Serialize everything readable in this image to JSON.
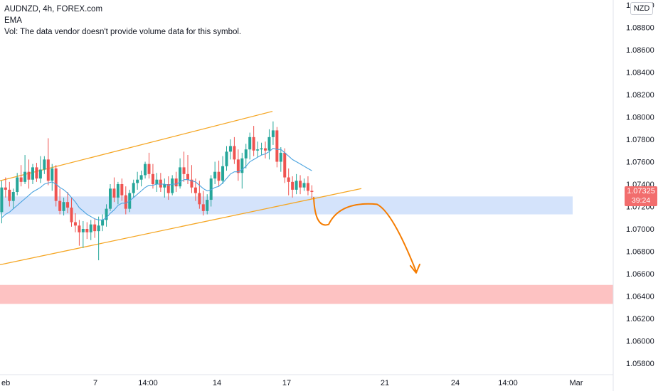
{
  "legend": {
    "symbol_line": "AUDNZD, 4h, FOREX.com",
    "ema_label": "EMA",
    "vol_label": "Vol: The data vendor doesn't provide volume data for this symbol."
  },
  "currency_button": "NZD",
  "last_price": {
    "value": "1.07325",
    "countdown": "39:24"
  },
  "colors": {
    "up": "#26a69a",
    "down": "#ef5350",
    "ema": "#4aa3df",
    "channel": "#f5a623",
    "support_zone": "#cfe0fb",
    "target_zone": "#fdbbbb",
    "projection": "#f57c00",
    "price_badge": "#f26d6d"
  },
  "chart_data": {
    "type": "candlestick",
    "timeframe": "4h",
    "y_axis": {
      "min": 1.057,
      "max": 1.09,
      "tick_labels": [
        "1.09000",
        "1.08800",
        "1.08600",
        "1.08400",
        "1.08200",
        "1.08000",
        "1.07800",
        "1.07600",
        "1.07400",
        "1.07200",
        "1.07000",
        "1.06800",
        "1.06600",
        "1.06400",
        "1.06200",
        "1.06000",
        "1.05800"
      ]
    },
    "x_axis": {
      "tick_labels": [
        "eb",
        "7",
        "14:00",
        "14",
        "17",
        "21",
        "24",
        "14:00",
        "Mar"
      ]
    },
    "candles": [
      {
        "o": 1.0715,
        "h": 1.0743,
        "l": 1.0705,
        "c": 1.0737
      },
      {
        "o": 1.0737,
        "h": 1.0746,
        "l": 1.0728,
        "c": 1.0735
      },
      {
        "o": 1.0735,
        "h": 1.0742,
        "l": 1.072,
        "c": 1.0725
      },
      {
        "o": 1.0725,
        "h": 1.0736,
        "l": 1.0718,
        "c": 1.0733
      },
      {
        "o": 1.0733,
        "h": 1.075,
        "l": 1.073,
        "c": 1.0746
      },
      {
        "o": 1.0746,
        "h": 1.0757,
        "l": 1.0738,
        "c": 1.0742
      },
      {
        "o": 1.0742,
        "h": 1.0766,
        "l": 1.074,
        "c": 1.0751
      },
      {
        "o": 1.0751,
        "h": 1.0762,
        "l": 1.0736,
        "c": 1.0744
      },
      {
        "o": 1.0744,
        "h": 1.0758,
        "l": 1.074,
        "c": 1.0755
      },
      {
        "o": 1.0755,
        "h": 1.0759,
        "l": 1.0742,
        "c": 1.0745
      },
      {
        "o": 1.0745,
        "h": 1.0765,
        "l": 1.0741,
        "c": 1.0753
      },
      {
        "o": 1.0753,
        "h": 1.0765,
        "l": 1.0749,
        "c": 1.0762
      },
      {
        "o": 1.0762,
        "h": 1.0781,
        "l": 1.0739,
        "c": 1.0743
      },
      {
        "o": 1.0743,
        "h": 1.0758,
        "l": 1.0734,
        "c": 1.0754
      },
      {
        "o": 1.0754,
        "h": 1.0757,
        "l": 1.072,
        "c": 1.0725
      },
      {
        "o": 1.0725,
        "h": 1.0736,
        "l": 1.0713,
        "c": 1.0716
      },
      {
        "o": 1.0716,
        "h": 1.0728,
        "l": 1.0712,
        "c": 1.0724
      },
      {
        "o": 1.0724,
        "h": 1.0733,
        "l": 1.0714,
        "c": 1.0719
      },
      {
        "o": 1.0719,
        "h": 1.0728,
        "l": 1.0702,
        "c": 1.0706
      },
      {
        "o": 1.0706,
        "h": 1.0714,
        "l": 1.0697,
        "c": 1.0703
      },
      {
        "o": 1.0703,
        "h": 1.0708,
        "l": 1.0685,
        "c": 1.0697
      },
      {
        "o": 1.0697,
        "h": 1.0707,
        "l": 1.0683,
        "c": 1.07
      },
      {
        "o": 1.07,
        "h": 1.0706,
        "l": 1.0691,
        "c": 1.0697
      },
      {
        "o": 1.0697,
        "h": 1.0708,
        "l": 1.069,
        "c": 1.0704
      },
      {
        "o": 1.0704,
        "h": 1.0709,
        "l": 1.0692,
        "c": 1.0698
      },
      {
        "o": 1.0698,
        "h": 1.0711,
        "l": 1.0672,
        "c": 1.0703
      },
      {
        "o": 1.0703,
        "h": 1.0713,
        "l": 1.0698,
        "c": 1.0708
      },
      {
        "o": 1.0708,
        "h": 1.0722,
        "l": 1.0702,
        "c": 1.0718
      },
      {
        "o": 1.0718,
        "h": 1.074,
        "l": 1.0716,
        "c": 1.0736
      },
      {
        "o": 1.0736,
        "h": 1.0746,
        "l": 1.0724,
        "c": 1.0728
      },
      {
        "o": 1.0728,
        "h": 1.0742,
        "l": 1.0722,
        "c": 1.074
      },
      {
        "o": 1.074,
        "h": 1.0745,
        "l": 1.0725,
        "c": 1.073
      },
      {
        "o": 1.073,
        "h": 1.0738,
        "l": 1.0713,
        "c": 1.0718
      },
      {
        "o": 1.0718,
        "h": 1.0735,
        "l": 1.0715,
        "c": 1.0732
      },
      {
        "o": 1.0732,
        "h": 1.0744,
        "l": 1.0728,
        "c": 1.0741
      },
      {
        "o": 1.0741,
        "h": 1.0751,
        "l": 1.0735,
        "c": 1.0744
      },
      {
        "o": 1.0744,
        "h": 1.0752,
        "l": 1.0738,
        "c": 1.0748
      },
      {
        "o": 1.0748,
        "h": 1.076,
        "l": 1.0745,
        "c": 1.0758
      },
      {
        "o": 1.0758,
        "h": 1.0768,
        "l": 1.0745,
        "c": 1.0749
      },
      {
        "o": 1.0749,
        "h": 1.0758,
        "l": 1.0736,
        "c": 1.074
      },
      {
        "o": 1.074,
        "h": 1.075,
        "l": 1.0733,
        "c": 1.0744
      },
      {
        "o": 1.0744,
        "h": 1.075,
        "l": 1.0733,
        "c": 1.0737
      },
      {
        "o": 1.0737,
        "h": 1.0745,
        "l": 1.0728,
        "c": 1.074
      },
      {
        "o": 1.074,
        "h": 1.0747,
        "l": 1.0726,
        "c": 1.0732
      },
      {
        "o": 1.0732,
        "h": 1.0748,
        "l": 1.073,
        "c": 1.0745
      },
      {
        "o": 1.0745,
        "h": 1.0751,
        "l": 1.0733,
        "c": 1.0738
      },
      {
        "o": 1.0738,
        "h": 1.0763,
        "l": 1.0736,
        "c": 1.0755
      },
      {
        "o": 1.0755,
        "h": 1.0769,
        "l": 1.0742,
        "c": 1.0749
      },
      {
        "o": 1.0749,
        "h": 1.0766,
        "l": 1.074,
        "c": 1.0744
      },
      {
        "o": 1.0744,
        "h": 1.0757,
        "l": 1.0732,
        "c": 1.0737
      },
      {
        "o": 1.0737,
        "h": 1.0745,
        "l": 1.0725,
        "c": 1.0732
      },
      {
        "o": 1.0732,
        "h": 1.0743,
        "l": 1.0718,
        "c": 1.0722
      },
      {
        "o": 1.0722,
        "h": 1.0734,
        "l": 1.0712,
        "c": 1.0716
      },
      {
        "o": 1.0716,
        "h": 1.0731,
        "l": 1.0713,
        "c": 1.0726
      },
      {
        "o": 1.0726,
        "h": 1.0748,
        "l": 1.072,
        "c": 1.0745
      },
      {
        "o": 1.0745,
        "h": 1.076,
        "l": 1.074,
        "c": 1.0751
      },
      {
        "o": 1.0751,
        "h": 1.0761,
        "l": 1.0738,
        "c": 1.0743
      },
      {
        "o": 1.0743,
        "h": 1.0765,
        "l": 1.074,
        "c": 1.0756
      },
      {
        "o": 1.0756,
        "h": 1.0774,
        "l": 1.0752,
        "c": 1.0769
      },
      {
        "o": 1.0769,
        "h": 1.078,
        "l": 1.0762,
        "c": 1.0774
      },
      {
        "o": 1.0774,
        "h": 1.0782,
        "l": 1.0758,
        "c": 1.0762
      },
      {
        "o": 1.0762,
        "h": 1.0771,
        "l": 1.0743,
        "c": 1.075
      },
      {
        "o": 1.075,
        "h": 1.0768,
        "l": 1.0736,
        "c": 1.0763
      },
      {
        "o": 1.0763,
        "h": 1.0776,
        "l": 1.0754,
        "c": 1.0771
      },
      {
        "o": 1.0771,
        "h": 1.0786,
        "l": 1.0762,
        "c": 1.0782
      },
      {
        "o": 1.0782,
        "h": 1.0792,
        "l": 1.0765,
        "c": 1.077
      },
      {
        "o": 1.077,
        "h": 1.0778,
        "l": 1.0764,
        "c": 1.0771
      },
      {
        "o": 1.0771,
        "h": 1.0777,
        "l": 1.0766,
        "c": 1.0772
      },
      {
        "o": 1.0772,
        "h": 1.0778,
        "l": 1.0763,
        "c": 1.077
      },
      {
        "o": 1.077,
        "h": 1.0789,
        "l": 1.0762,
        "c": 1.0782
      },
      {
        "o": 1.0782,
        "h": 1.0796,
        "l": 1.0775,
        "c": 1.0788
      },
      {
        "o": 1.0788,
        "h": 1.0791,
        "l": 1.0755,
        "c": 1.076
      },
      {
        "o": 1.076,
        "h": 1.0773,
        "l": 1.0751,
        "c": 1.0768
      },
      {
        "o": 1.0768,
        "h": 1.0772,
        "l": 1.0741,
        "c": 1.0746
      },
      {
        "o": 1.0746,
        "h": 1.0754,
        "l": 1.073,
        "c": 1.0742
      },
      {
        "o": 1.0742,
        "h": 1.0747,
        "l": 1.0728,
        "c": 1.0735
      },
      {
        "o": 1.0735,
        "h": 1.0749,
        "l": 1.0731,
        "c": 1.0743
      },
      {
        "o": 1.0743,
        "h": 1.0748,
        "l": 1.0731,
        "c": 1.0737
      },
      {
        "o": 1.0737,
        "h": 1.0745,
        "l": 1.0734,
        "c": 1.0741
      },
      {
        "o": 1.0741,
        "h": 1.0747,
        "l": 1.073,
        "c": 1.0734
      },
      {
        "o": 1.0734,
        "h": 1.0739,
        "l": 1.0727,
        "c": 1.0733
      }
    ],
    "ema": [
      1.071,
      1.0713,
      1.0715,
      1.0718,
      1.0721,
      1.0724,
      1.0727,
      1.073,
      1.0733,
      1.0735,
      1.0737,
      1.074,
      1.0741,
      1.0742,
      1.074,
      1.0737,
      1.0735,
      1.0732,
      1.0728,
      1.0724,
      1.0719,
      1.0716,
      1.0713,
      1.0711,
      1.0709,
      1.0708,
      1.0708,
      1.071,
      1.0714,
      1.0717,
      1.0721,
      1.0723,
      1.0723,
      1.0725,
      1.0728,
      1.0731,
      1.0734,
      1.0737,
      1.0739,
      1.0739,
      1.074,
      1.074,
      1.074,
      1.0739,
      1.074,
      1.074,
      1.0742,
      1.0744,
      1.0744,
      1.0743,
      1.0742,
      1.0739,
      1.0736,
      1.0734,
      1.0735,
      1.0737,
      1.0738,
      1.0741,
      1.0745,
      1.0749,
      1.0751,
      1.0751,
      1.0753,
      1.0756,
      1.076,
      1.0762,
      1.0764,
      1.0766,
      1.0767,
      1.0769,
      1.0772,
      1.0771,
      1.0771,
      1.0768,
      1.0765,
      1.0762,
      1.076,
      1.0758,
      1.0756,
      1.0754,
      1.0752
    ],
    "drawings": {
      "support_zone": {
        "from": 1.0713,
        "to": 1.0729
      },
      "target_zone": {
        "from": 1.0633,
        "to": 1.065
      },
      "channel_upper": {
        "y_start": 1.0743,
        "y_end": 1.0805
      },
      "channel_lower": {
        "y_start": 1.0668,
        "y_end": 1.0736
      },
      "projection_path": [
        1.0728,
        1.0705,
        1.0704,
        1.0723,
        1.0722,
        1.07,
        1.0662
      ]
    }
  }
}
